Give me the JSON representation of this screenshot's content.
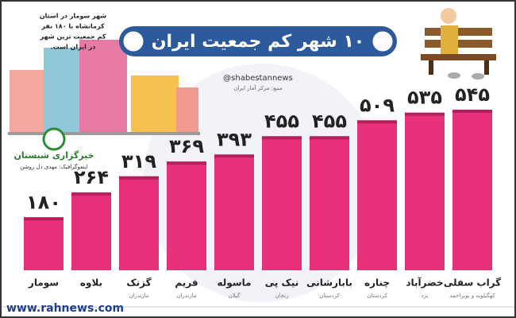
{
  "chart_data": {
    "type": "bar",
    "title": "۱۰ شهر کم جمعیت ایران",
    "handle": "@shabestannews",
    "source": "منبع: مرکز آمار ایران",
    "note": [
      "شهر سومار در استان",
      "کرمانشاه با ۱۸۰ نفر",
      "کم جمعیت ترین شهر",
      "در ایران است."
    ],
    "brand": "خبرگزاری شبستان",
    "credit": "اینفوگرافیک: مهدی دل روشن",
    "footer": "www.rahnews.com",
    "categories": [
      "سومار",
      "بلاوه",
      "گزنک",
      "فریم",
      "ماسوله",
      "نیک پی",
      "بابارشانی",
      "چناره",
      "خضرآباد",
      "گراب سفلی"
    ],
    "provinces": [
      null,
      null,
      "مازندران",
      "مازندران",
      "گیلان",
      "زنجان",
      "کردستان",
      "کردستان",
      "یزد",
      "کهگیلویه و بویراحمد"
    ],
    "values": [
      180,
      264,
      319,
      369,
      393,
      455,
      455,
      509,
      535,
      545
    ],
    "value_labels": [
      "۱۸۰",
      "۲۶۴",
      "۳۱۹",
      "۳۶۹",
      "۳۹۳",
      "۴۵۵",
      "۴۵۵",
      "۵۰۹",
      "۵۳۵",
      "۵۴۵"
    ],
    "color": "#e8317a"
  }
}
